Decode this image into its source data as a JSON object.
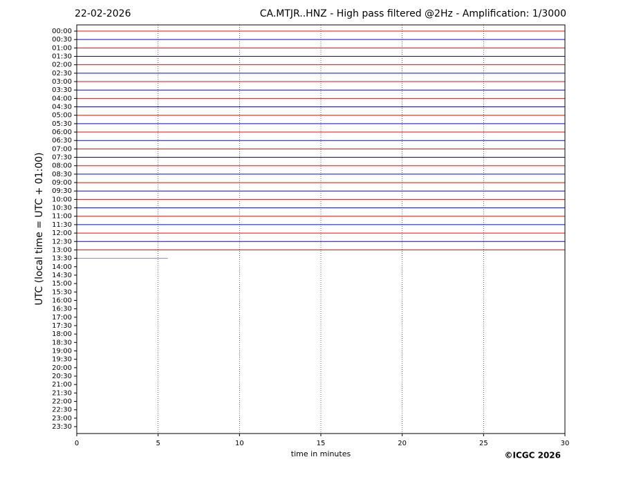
{
  "chart_data": {
    "type": "helicorder",
    "date": "22-02-2026",
    "title": "CA.MTJR..HNZ - High pass filtered @2Hz - Amplification: 1/3000",
    "ylabel": "UTC (local time = UTC + 01:00)",
    "xlabel": "time in minutes",
    "copyright": "©ICGC 2026",
    "rows": [
      "00:00",
      "00:30",
      "01:00",
      "01:30",
      "02:00",
      "02:30",
      "03:00",
      "03:30",
      "04:00",
      "04:30",
      "05:00",
      "05:30",
      "06:00",
      "06:30",
      "07:00",
      "07:30",
      "08:00",
      "08:30",
      "09:00",
      "09:30",
      "10:00",
      "10:30",
      "11:00",
      "11:30",
      "12:00",
      "12:30",
      "13:00",
      "13:30",
      "14:00",
      "14:30",
      "15:00",
      "15:30",
      "16:00",
      "16:30",
      "17:00",
      "17:30",
      "18:00",
      "18:30",
      "19:00",
      "19:30",
      "20:00",
      "20:30",
      "21:00",
      "21:30",
      "22:00",
      "22:30",
      "23:00",
      "23:30"
    ],
    "xlim": [
      0,
      30
    ],
    "xticks": [
      0,
      5,
      10,
      15,
      20,
      25,
      30
    ],
    "grid": true,
    "traces": [
      {
        "color": "#ff0000",
        "x_end": 30
      },
      {
        "color": "#0000ff",
        "x_end": 30
      },
      {
        "color": "#ff0000",
        "x_end": 30
      },
      {
        "color": "#0000ff",
        "x_end": 30
      },
      {
        "color": "#ff0000",
        "x_end": 30
      },
      {
        "color": "#0000ff",
        "x_end": 30
      },
      {
        "color": "#ff0000",
        "x_end": 30
      },
      {
        "color": "#0000ff",
        "x_end": 30
      },
      {
        "color": "#ff0000",
        "x_end": 30
      },
      {
        "color": "#0000ff",
        "x_end": 30
      },
      {
        "color": "#ff0000",
        "x_end": 30
      },
      {
        "color": "#0000ff",
        "x_end": 30
      },
      {
        "color": "#ff0000",
        "x_end": 30
      },
      {
        "color": "#0000ff",
        "x_end": 30
      },
      {
        "color": "#ff0000",
        "x_end": 30
      },
      {
        "color": "#0000ff",
        "x_end": 30
      },
      {
        "color": "#ff0000",
        "x_end": 30
      },
      {
        "color": "#0000ff",
        "x_end": 30
      },
      {
        "color": "#ff0000",
        "x_end": 30
      },
      {
        "color": "#0000ff",
        "x_end": 30
      },
      {
        "color": "#ff0000",
        "x_end": 30
      },
      {
        "color": "#0000ff",
        "x_end": 30
      },
      {
        "color": "#ff0000",
        "x_end": 30
      },
      {
        "color": "#0000ff",
        "x_end": 30
      },
      {
        "color": "#ff0000",
        "x_end": 30
      },
      {
        "color": "#0000ff",
        "x_end": 30
      },
      {
        "color": "#ff0000",
        "x_end": 30
      },
      {
        "color": "#8888bb",
        "x_end": 5.6
      }
    ]
  }
}
